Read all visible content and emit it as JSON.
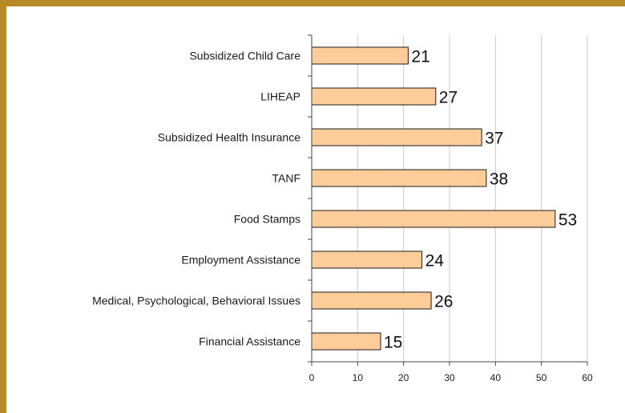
{
  "chart_data": {
    "type": "bar",
    "orientation": "horizontal",
    "categories": [
      "Subsidized Child Care",
      "LIHEAP",
      "Subsidized Health Insurance",
      "TANF",
      "Food Stamps",
      "Employment Assistance",
      "Medical, Psychological, Behavioral Issues",
      "Financial Assistance"
    ],
    "values": [
      21,
      27,
      37,
      38,
      53,
      24,
      26,
      15
    ],
    "data_labels": [
      "21",
      "27",
      "37",
      "38",
      "53",
      "24",
      "26",
      "15"
    ],
    "xlim": [
      0,
      60
    ],
    "x_ticks": [
      "0",
      "10",
      "20",
      "30",
      "40",
      "50",
      "60"
    ],
    "title": "",
    "xlabel": "",
    "ylabel": "",
    "grid": "vertical",
    "legend": "none"
  },
  "colors": {
    "bar_fill": "#fdcc99",
    "bar_stroke": "#1a1a1a",
    "gridline": "#c8c8c8",
    "frame": "#b68b27"
  }
}
